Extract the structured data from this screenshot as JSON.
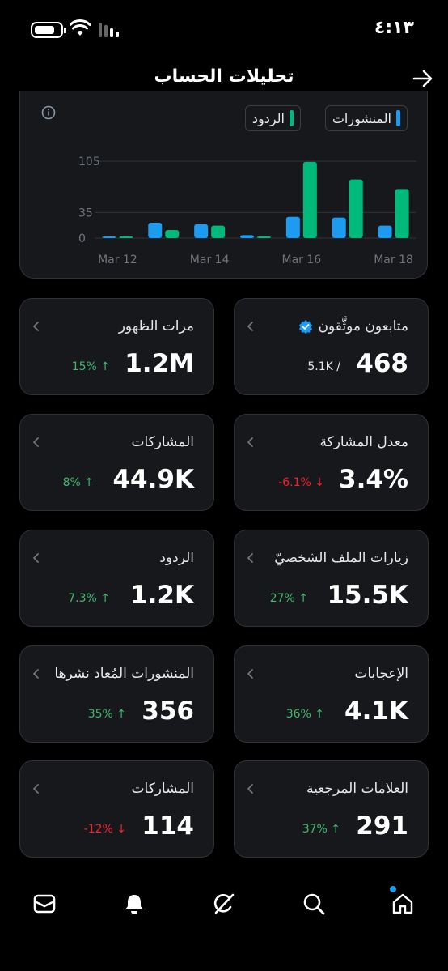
{
  "status_bar": {
    "time": "٤:١٣"
  },
  "header": {
    "title": "تحليلات الحساب"
  },
  "chart": {
    "legend": [
      {
        "label": "المنشورات",
        "color": "#1d9bf0"
      },
      {
        "label": "الردود",
        "color": "#00ba7c"
      }
    ]
  },
  "chart_data": {
    "type": "bar",
    "categories": [
      "Mar 12",
      "Mar 13",
      "Mar 14",
      "Mar 15",
      "Mar 16",
      "Mar 17",
      "Mar 18"
    ],
    "x_tick_labels": [
      "Mar 12",
      "Mar 14",
      "Mar 16",
      "Mar 18"
    ],
    "y_tick_labels": [
      "105",
      "35",
      "0"
    ],
    "ylim": [
      0,
      105
    ],
    "grid": true,
    "legend_position": "top",
    "series": [
      {
        "name": "المنشورات",
        "color": "#1d9bf0",
        "values": [
          2,
          21,
          19,
          4,
          29,
          28,
          17
        ]
      },
      {
        "name": "الردود",
        "color": "#00ba7c",
        "values": [
          1,
          11,
          17,
          2,
          104,
          80,
          67
        ]
      }
    ]
  },
  "stats": [
    {
      "title": "متابعون موثَّقون",
      "value": "468",
      "sub": "5.1K /",
      "verified": true
    },
    {
      "title": "مرات الظهور",
      "value": "1.2M",
      "change": "15% ↑",
      "trend": "up"
    },
    {
      "title": "معدل المشاركة",
      "value": "3.4%",
      "change": "-6.1% ↓",
      "trend": "down"
    },
    {
      "title": "المشاركات",
      "value": "44.9K",
      "change": "8% ↑",
      "trend": "up"
    },
    {
      "title": "زيارات الملف الشخصيّ",
      "value": "15.5K",
      "change": "27% ↑",
      "trend": "up"
    },
    {
      "title": "الردود",
      "value": "1.2K",
      "change": "7.3% ↑",
      "trend": "up"
    },
    {
      "title": "الإعجابات",
      "value": "4.1K",
      "change": "36% ↑",
      "trend": "up"
    },
    {
      "title": "المنشورات المُعاد نشرها",
      "value": "356",
      "change": "35% ↑",
      "trend": "up"
    },
    {
      "title": "العلامات المرجعية",
      "value": "291",
      "change": "37% ↑",
      "trend": "up"
    },
    {
      "title": "المشاركات",
      "value": "114",
      "change": "-12% ↓",
      "trend": "down"
    }
  ],
  "bottom_nav": [
    {
      "icon": "home-icon",
      "active": true
    },
    {
      "icon": "search-icon"
    },
    {
      "icon": "grok-icon"
    },
    {
      "icon": "bell-icon"
    },
    {
      "icon": "mail-icon"
    }
  ]
}
